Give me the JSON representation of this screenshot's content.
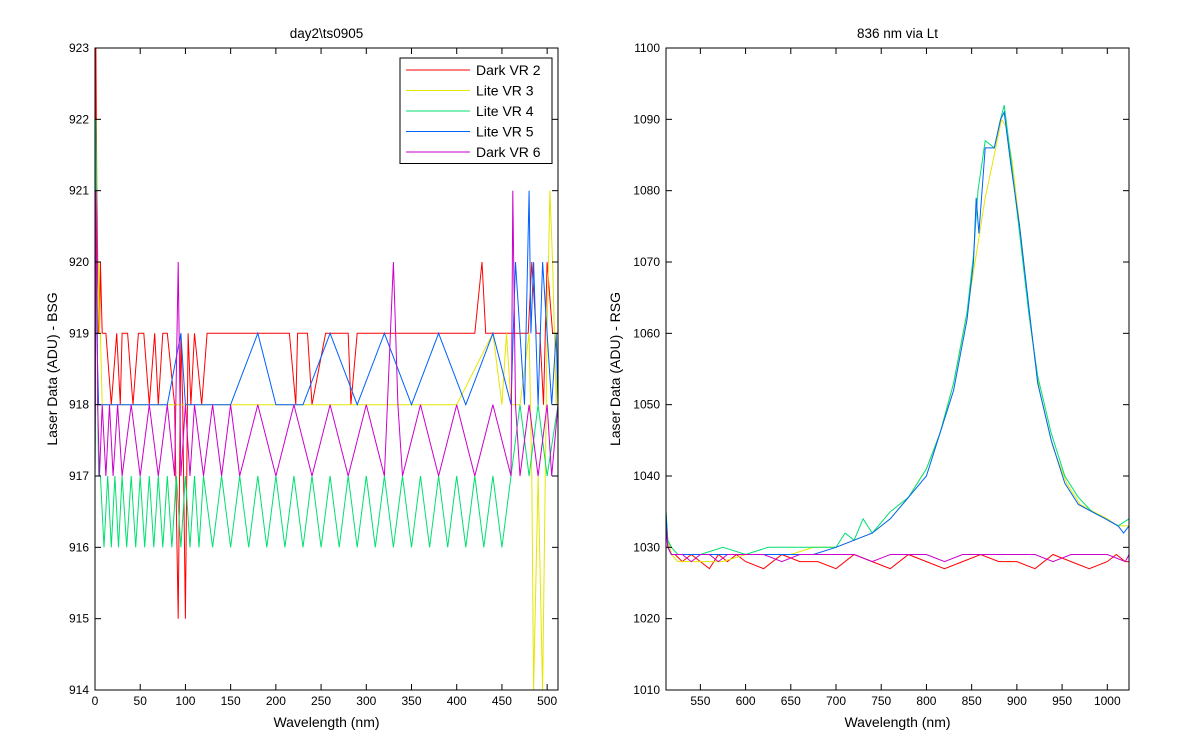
{
  "chart_data": [
    {
      "type": "line",
      "title": "day2\\ts0905",
      "xlabel": "Wavelength (nm)",
      "ylabel": "Laser Data (ADU) - BSG",
      "xlim": [
        0,
        512
      ],
      "ylim": [
        914,
        923
      ],
      "xticks": [
        0,
        50,
        100,
        150,
        200,
        250,
        300,
        350,
        400,
        450,
        500
      ],
      "yticks": [
        914,
        915,
        916,
        917,
        918,
        919,
        920,
        921,
        922,
        923
      ],
      "grid": false,
      "legend_position": "top-right",
      "series": [
        {
          "name": "Dark VR 2",
          "color": "#ff0000",
          "x": [
            0,
            1,
            2,
            3,
            4,
            5,
            6,
            8,
            12,
            18,
            24,
            28,
            30,
            36,
            42,
            48,
            54,
            60,
            66,
            70,
            75,
            80,
            88,
            92,
            95,
            97,
            100,
            103,
            106,
            110,
            118,
            124,
            130,
            140,
            155,
            170,
            185,
            200,
            215,
            222,
            224,
            235,
            240,
            255,
            270,
            280,
            283,
            290,
            300,
            310,
            330,
            345,
            360,
            380,
            400,
            420,
            428,
            432,
            440,
            450,
            460,
            470,
            479,
            483,
            488,
            492,
            496,
            500,
            506,
            512
          ],
          "y": [
            917,
            923,
            921,
            920,
            919,
            919,
            920,
            919,
            919,
            918,
            919,
            918,
            919,
            919,
            918,
            919,
            919,
            918,
            919,
            918,
            919,
            919,
            918,
            915,
            919,
            918,
            915,
            919,
            918,
            919,
            918,
            919,
            919,
            919,
            919,
            919,
            919,
            919,
            919,
            918,
            919,
            919,
            918,
            919,
            919,
            919,
            918,
            919,
            919,
            919,
            919,
            919,
            919,
            919,
            919,
            919,
            920,
            919,
            919,
            919,
            919,
            919,
            919,
            920,
            919,
            919,
            918,
            920,
            919,
            919
          ]
        },
        {
          "name": "Lite VR 3",
          "color": "#e6e600",
          "x": [
            0,
            1,
            2,
            3,
            4,
            5,
            6,
            8,
            12,
            20,
            30,
            40,
            60,
            80,
            100,
            120,
            150,
            200,
            250,
            300,
            350,
            400,
            440,
            450,
            455,
            460,
            470,
            480,
            483,
            485,
            490,
            495,
            497,
            500,
            503,
            506,
            508,
            510,
            512
          ],
          "y": [
            917,
            922,
            920,
            919,
            920,
            919,
            919,
            918,
            918,
            918,
            918,
            918,
            918,
            918,
            918,
            918,
            918,
            918,
            918,
            918,
            918,
            918,
            919,
            918,
            919,
            918,
            918,
            919,
            917,
            914,
            917,
            914,
            916,
            919,
            921,
            920,
            919,
            918,
            919
          ]
        },
        {
          "name": "Lite VR 4",
          "color": "#00e070",
          "x": [
            0,
            1,
            2,
            3,
            4,
            6,
            10,
            14,
            18,
            22,
            26,
            30,
            35,
            40,
            45,
            50,
            55,
            60,
            65,
            70,
            75,
            80,
            85,
            90,
            95,
            100,
            105,
            110,
            115,
            120,
            130,
            140,
            150,
            160,
            170,
            180,
            190,
            200,
            210,
            220,
            230,
            240,
            250,
            260,
            270,
            280,
            290,
            300,
            310,
            320,
            330,
            340,
            350,
            360,
            370,
            380,
            390,
            400,
            410,
            420,
            430,
            440,
            450,
            460,
            470,
            480,
            490,
            500,
            512
          ],
          "y": [
            917,
            922,
            920,
            918,
            917,
            917,
            916,
            917,
            916,
            917,
            916,
            917,
            916,
            917,
            916,
            917,
            916,
            917,
            916,
            917,
            916,
            917,
            916,
            917,
            916,
            917,
            916,
            917,
            916,
            917,
            916,
            917,
            916,
            917,
            916,
            917,
            916,
            917,
            916,
            917,
            916,
            917,
            916,
            917,
            916,
            917,
            916,
            917,
            916,
            917,
            916,
            917,
            916,
            917,
            916,
            917,
            916,
            917,
            916,
            917,
            916,
            917,
            916,
            917,
            918,
            917,
            918,
            917,
            918
          ]
        },
        {
          "name": "Lite VR 5",
          "color": "#0060ff",
          "x": [
            0,
            1,
            2,
            4,
            6,
            10,
            20,
            40,
            60,
            80,
            95,
            100,
            120,
            150,
            180,
            200,
            230,
            260,
            290,
            320,
            350,
            380,
            410,
            440,
            460,
            465,
            470,
            475,
            480,
            482,
            485,
            490,
            495,
            500,
            505,
            510,
            512
          ],
          "y": [
            917,
            921,
            919,
            918,
            918,
            918,
            918,
            918,
            918,
            918,
            919,
            918,
            918,
            918,
            919,
            918,
            918,
            919,
            918,
            919,
            918,
            919,
            918,
            919,
            918,
            920,
            919,
            918,
            921,
            919,
            920,
            918,
            920,
            919,
            918,
            919,
            918
          ]
        },
        {
          "name": "Dark VR 6",
          "color": "#cc00cc",
          "x": [
            0,
            1,
            2,
            3,
            5,
            8,
            12,
            16,
            20,
            25,
            30,
            40,
            50,
            60,
            70,
            80,
            88,
            92,
            95,
            100,
            105,
            110,
            120,
            130,
            140,
            150,
            160,
            180,
            200,
            220,
            240,
            260,
            280,
            300,
            320,
            330,
            335,
            340,
            360,
            380,
            400,
            420,
            440,
            460,
            462,
            465,
            470,
            480,
            490,
            500,
            505,
            512
          ],
          "y": [
            917,
            921,
            920,
            918,
            917,
            918,
            917,
            918,
            917,
            918,
            917,
            918,
            917,
            918,
            917,
            918,
            917,
            920,
            917,
            918,
            917,
            918,
            917,
            918,
            917,
            918,
            917,
            918,
            917,
            918,
            917,
            918,
            917,
            918,
            917,
            920,
            918,
            917,
            918,
            917,
            918,
            917,
            918,
            917,
            921,
            918,
            917,
            918,
            917,
            918,
            917,
            918
          ]
        }
      ]
    },
    {
      "type": "line",
      "title": "836 nm via Lt",
      "xlabel": "Wavelength (nm)",
      "ylabel": "Laser Data (ADU) - RSG",
      "xlim": [
        512,
        1024
      ],
      "ylim": [
        1010,
        1100
      ],
      "xticks": [
        550,
        600,
        650,
        700,
        750,
        800,
        850,
        900,
        950,
        1000
      ],
      "yticks": [
        1010,
        1020,
        1030,
        1040,
        1050,
        1060,
        1070,
        1080,
        1090,
        1100
      ],
      "grid": false,
      "series": [
        {
          "color": "#ff0000",
          "x": [
            512,
            514,
            518,
            522,
            530,
            540,
            550,
            560,
            570,
            580,
            590,
            600,
            620,
            640,
            660,
            680,
            700,
            720,
            740,
            760,
            780,
            800,
            820,
            840,
            860,
            880,
            900,
            920,
            940,
            960,
            980,
            1000,
            1010,
            1020,
            1024
          ],
          "y": [
            1034,
            1031,
            1029,
            1029,
            1028,
            1029,
            1028,
            1027,
            1029,
            1028,
            1029,
            1028,
            1027,
            1029,
            1028,
            1028,
            1027,
            1029,
            1028,
            1027,
            1029,
            1028,
            1027,
            1028,
            1029,
            1028,
            1028,
            1027,
            1029,
            1028,
            1027,
            1028,
            1029,
            1028,
            1028
          ]
        },
        {
          "color": "#e6e600",
          "x": [
            512,
            514,
            518,
            525,
            535,
            550,
            575,
            600,
            625,
            650,
            675,
            700,
            720,
            740,
            760,
            780,
            800,
            815,
            830,
            845,
            855,
            865,
            875,
            883,
            888,
            895,
            905,
            915,
            925,
            940,
            955,
            970,
            985,
            1000,
            1012,
            1024
          ],
          "y": [
            1035,
            1031,
            1029,
            1028,
            1028,
            1028,
            1028,
            1029,
            1029,
            1029,
            1030,
            1030,
            1031,
            1032,
            1034,
            1037,
            1041,
            1046,
            1053,
            1063,
            1071,
            1079,
            1085,
            1090,
            1089,
            1084,
            1073,
            1061,
            1052,
            1044,
            1039,
            1036,
            1035,
            1034,
            1033,
            1033
          ]
        },
        {
          "color": "#00e070",
          "x": [
            512,
            514,
            518,
            525,
            535,
            550,
            575,
            600,
            625,
            650,
            675,
            700,
            710,
            720,
            730,
            740,
            760,
            780,
            800,
            815,
            830,
            845,
            852,
            857,
            865,
            875,
            882,
            886,
            893,
            903,
            913,
            923,
            938,
            953,
            968,
            983,
            998,
            1012,
            1024
          ],
          "y": [
            1035,
            1031,
            1030,
            1029,
            1029,
            1029,
            1030,
            1029,
            1030,
            1030,
            1030,
            1030,
            1032,
            1031,
            1034,
            1032,
            1035,
            1037,
            1041,
            1046,
            1053,
            1063,
            1071,
            1080,
            1087,
            1086,
            1090,
            1092,
            1085,
            1074,
            1063,
            1054,
            1046,
            1040,
            1037,
            1035,
            1034,
            1033,
            1034
          ]
        },
        {
          "color": "#0060ff",
          "x": [
            512,
            514,
            518,
            525,
            535,
            550,
            575,
            600,
            625,
            650,
            675,
            700,
            720,
            740,
            760,
            780,
            800,
            815,
            830,
            845,
            852,
            855,
            858,
            865,
            875,
            882,
            886,
            893,
            903,
            913,
            923,
            938,
            953,
            968,
            983,
            998,
            1012,
            1018,
            1024
          ],
          "y": [
            1035,
            1030,
            1029,
            1029,
            1029,
            1029,
            1029,
            1029,
            1029,
            1029,
            1029,
            1030,
            1031,
            1032,
            1034,
            1037,
            1040,
            1046,
            1052,
            1062,
            1070,
            1079,
            1074,
            1086,
            1086,
            1090,
            1091,
            1084,
            1075,
            1064,
            1053,
            1045,
            1039,
            1036,
            1035,
            1034,
            1033,
            1032,
            1033
          ]
        },
        {
          "color": "#cc00cc",
          "x": [
            512,
            514,
            518,
            522,
            530,
            540,
            550,
            560,
            570,
            580,
            600,
            620,
            640,
            660,
            680,
            700,
            720,
            740,
            760,
            780,
            800,
            820,
            840,
            860,
            880,
            900,
            920,
            940,
            960,
            980,
            1000,
            1020,
            1024
          ],
          "y": [
            1033,
            1030,
            1029,
            1029,
            1029,
            1028,
            1029,
            1029,
            1028,
            1029,
            1029,
            1029,
            1028,
            1029,
            1029,
            1029,
            1029,
            1028,
            1029,
            1029,
            1029,
            1028,
            1029,
            1029,
            1029,
            1029,
            1029,
            1028,
            1029,
            1029,
            1029,
            1028,
            1029
          ]
        }
      ]
    }
  ]
}
